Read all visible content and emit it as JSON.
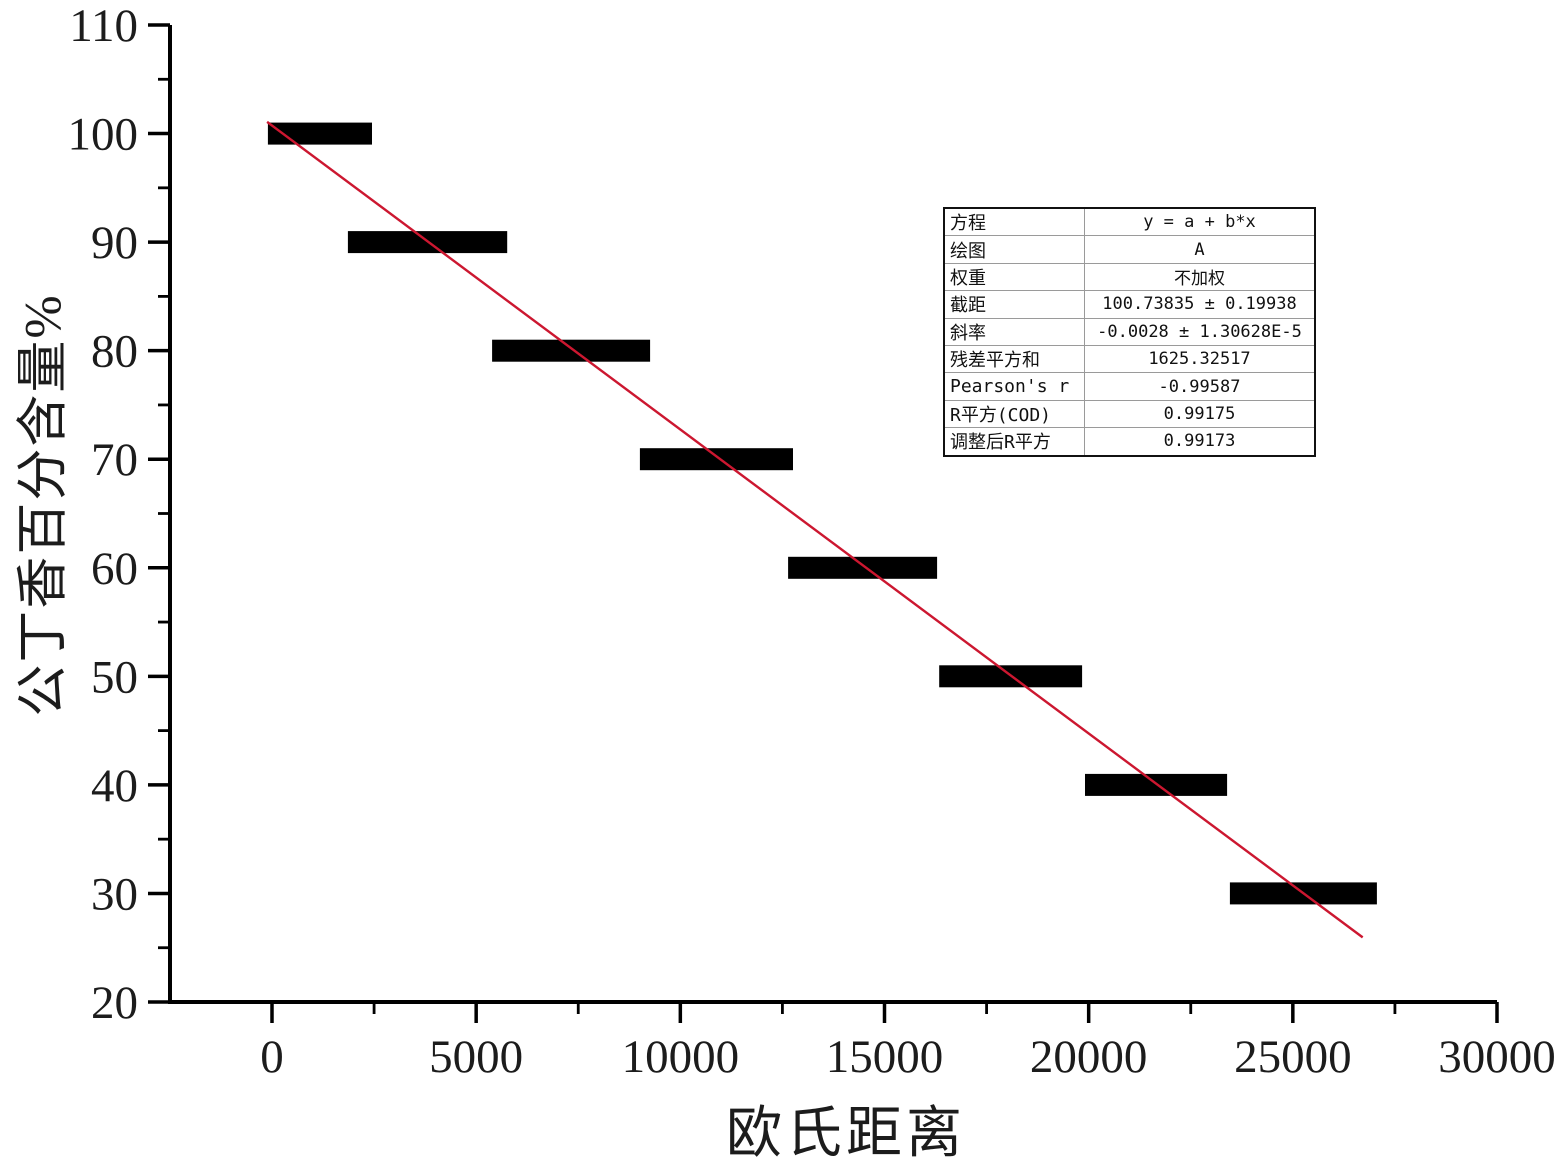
{
  "chart_data": {
    "type": "scatter",
    "title": "",
    "xlabel": "欧氏距离",
    "ylabel": "公丁香百分含量%",
    "xlim": [
      -2500,
      30000
    ],
    "ylim": [
      20,
      110
    ],
    "x_major_ticks": [
      0,
      5000,
      10000,
      15000,
      20000,
      25000,
      30000
    ],
    "x_minor_ticks": [
      2500,
      7500,
      12500,
      17500,
      22500,
      27500
    ],
    "y_major_ticks": [
      20,
      30,
      40,
      50,
      60,
      70,
      80,
      90,
      100,
      110
    ],
    "y_minor_ticks": [
      25,
      35,
      45,
      55,
      65,
      75,
      85,
      95,
      105
    ],
    "grid": false,
    "legend": "none",
    "series": [
      {
        "name": "A",
        "marker": "thick-horizontal-bar",
        "color": "#000000",
        "points": [
          {
            "y": 100,
            "x_center": 1175,
            "x_start": -100,
            "x_end": 2450
          },
          {
            "y": 90,
            "x_center": 3810,
            "x_start": 1860,
            "x_end": 5760
          },
          {
            "y": 80,
            "x_center": 7325,
            "x_start": 5390,
            "x_end": 9260
          },
          {
            "y": 70,
            "x_center": 10885,
            "x_start": 9010,
            "x_end": 12760
          },
          {
            "y": 60,
            "x_center": 14465,
            "x_start": 12640,
            "x_end": 16290
          },
          {
            "y": 50,
            "x_center": 18090,
            "x_start": 16340,
            "x_end": 19840
          },
          {
            "y": 40,
            "x_center": 21650,
            "x_start": 19910,
            "x_end": 23390
          },
          {
            "y": 30,
            "x_center": 25260,
            "x_start": 23460,
            "x_end": 27060
          }
        ]
      }
    ],
    "fit_line": {
      "name": "linear-fit",
      "color": "#cc1730",
      "intercept": 100.73835,
      "slope": -0.0028,
      "x_start": -120,
      "x_end": 26710
    }
  },
  "stats_table": {
    "rows": [
      {
        "label": "方程",
        "value": "y = a + b*x"
      },
      {
        "label": "绘图",
        "value": "A"
      },
      {
        "label": "权重",
        "value": "不加权"
      },
      {
        "label": "截距",
        "value": "100.73835 ± 0.19938"
      },
      {
        "label": "斜率",
        "value": "-0.0028 ± 1.30628E-5"
      },
      {
        "label": "残差平方和",
        "value": "1625.32517"
      },
      {
        "label": "Pearson's r",
        "value": "-0.99587"
      },
      {
        "label": "R平方(COD)",
        "value": "0.99175"
      },
      {
        "label": "调整后R平方",
        "value": "0.99173"
      }
    ]
  },
  "colors": {
    "marker": "#000000",
    "fit_line": "#cc1730",
    "axis": "#000000",
    "text": "#1c1c1c",
    "table_border": "#111111",
    "table_grid": "#9a9a9a",
    "background": "#ffffff"
  }
}
